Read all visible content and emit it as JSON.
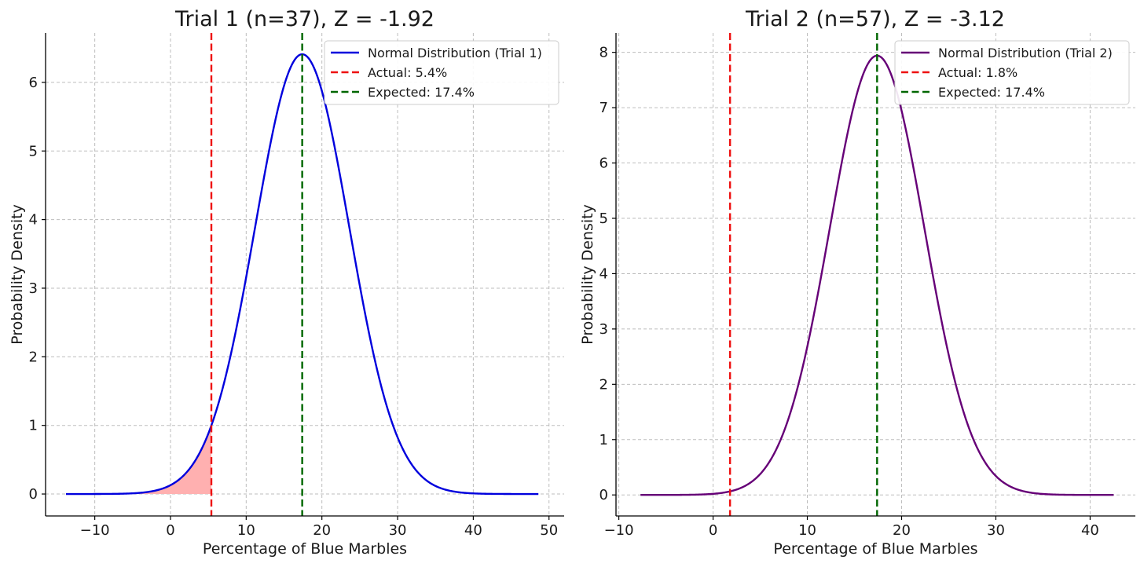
{
  "chart_data": [
    {
      "type": "line",
      "title": "Trial 1 (n=37), Z = -1.92",
      "xlabel": "Percentage of Blue Marbles",
      "ylabel": "Probability Density",
      "xlim": [
        -16.5,
        52
      ],
      "ylim": [
        -0.32,
        6.72
      ],
      "xticks": [
        -10,
        0,
        10,
        20,
        30,
        40,
        50
      ],
      "yticks": [
        0,
        1,
        2,
        3,
        4,
        5,
        6
      ],
      "xtick_labels": [
        "−10",
        "0",
        "10",
        "20",
        "30",
        "40",
        "50"
      ],
      "ytick_labels": [
        "0",
        "1",
        "2",
        "3",
        "4",
        "5",
        "6"
      ],
      "grid": true,
      "legend_position": "top-right",
      "series": [
        {
          "name": "Normal Distribution (Trial 1)",
          "kind": "normal_curve",
          "mean": 17.4,
          "peak_density": 6.41,
          "x_range": [
            -13.8,
            48.6
          ],
          "color": "#0000dd"
        },
        {
          "name": "Actual: 5.4%",
          "kind": "vline",
          "x": 5.4,
          "color": "#ee1111"
        },
        {
          "name": "Expected: 17.4%",
          "kind": "vline",
          "x": 17.4,
          "color": "#006600"
        }
      ],
      "shaded_tail": {
        "to_x": 5.4,
        "color": "#ffb0b0"
      }
    },
    {
      "type": "line",
      "title": "Trial 2 (n=57), Z = -3.12",
      "xlabel": "Percentage of Blue Marbles",
      "ylabel": "Probability Density",
      "xlim": [
        -10.3,
        44.8
      ],
      "ylim": [
        -0.38,
        8.35
      ],
      "xticks": [
        -10,
        0,
        10,
        20,
        30,
        40
      ],
      "yticks": [
        0,
        1,
        2,
        3,
        4,
        5,
        6,
        7,
        8
      ],
      "xtick_labels": [
        "−10",
        "0",
        "10",
        "20",
        "30",
        "40"
      ],
      "ytick_labels": [
        "0",
        "1",
        "2",
        "3",
        "4",
        "5",
        "6",
        "7",
        "8"
      ],
      "grid": true,
      "legend_position": "top-right",
      "series": [
        {
          "name": "Normal Distribution (Trial 2)",
          "kind": "normal_curve",
          "mean": 17.4,
          "peak_density": 7.94,
          "x_range": [
            -7.7,
            42.5
          ],
          "color": "#660077"
        },
        {
          "name": "Actual: 1.8%",
          "kind": "vline",
          "x": 1.8,
          "color": "#ee1111"
        },
        {
          "name": "Expected: 17.4%",
          "kind": "vline",
          "x": 17.4,
          "color": "#006600"
        }
      ]
    }
  ]
}
